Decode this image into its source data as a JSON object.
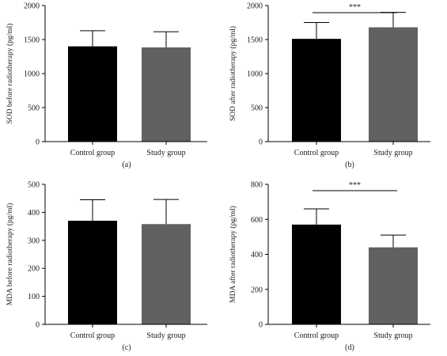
{
  "colors": {
    "bar_control": "#000000",
    "bar_study": "#5f6163",
    "axis": "#000000"
  },
  "chart_data": [
    {
      "type": "bar",
      "panel": "(a)",
      "categories": [
        "Control group",
        "Study group"
      ],
      "values": [
        1400,
        1385
      ],
      "errors": [
        230,
        230
      ],
      "ylabel": "SOD before radiotherapy (pg/ml)",
      "ylim": [
        0,
        2000
      ],
      "yticks": [
        0,
        500,
        1000,
        1500,
        2000
      ],
      "significance": null
    },
    {
      "type": "bar",
      "panel": "(b)",
      "categories": [
        "Control group",
        "Study group"
      ],
      "values": [
        1510,
        1680
      ],
      "errors": [
        240,
        220
      ],
      "ylabel": "SOD after radiotherapy (pg/ml)",
      "ylim": [
        0,
        2000
      ],
      "yticks": [
        0,
        500,
        1000,
        1500,
        2000
      ],
      "significance": "***"
    },
    {
      "type": "bar",
      "panel": "(c)",
      "categories": [
        "Control group",
        "Study group"
      ],
      "values": [
        370,
        358
      ],
      "errors": [
        75,
        88
      ],
      "ylabel": "MDA before radiotherapy (pg/ml)",
      "ylim": [
        0,
        500
      ],
      "yticks": [
        0,
        100,
        200,
        300,
        400,
        500
      ],
      "significance": null
    },
    {
      "type": "bar",
      "panel": "(d)",
      "categories": [
        "Control group",
        "Study group"
      ],
      "values": [
        570,
        440
      ],
      "errors": [
        90,
        70
      ],
      "ylabel": "MDA after radiotherapy (pg/ml)",
      "ylim": [
        0,
        800
      ],
      "yticks": [
        0,
        200,
        400,
        600,
        800
      ],
      "significance": "***"
    }
  ]
}
